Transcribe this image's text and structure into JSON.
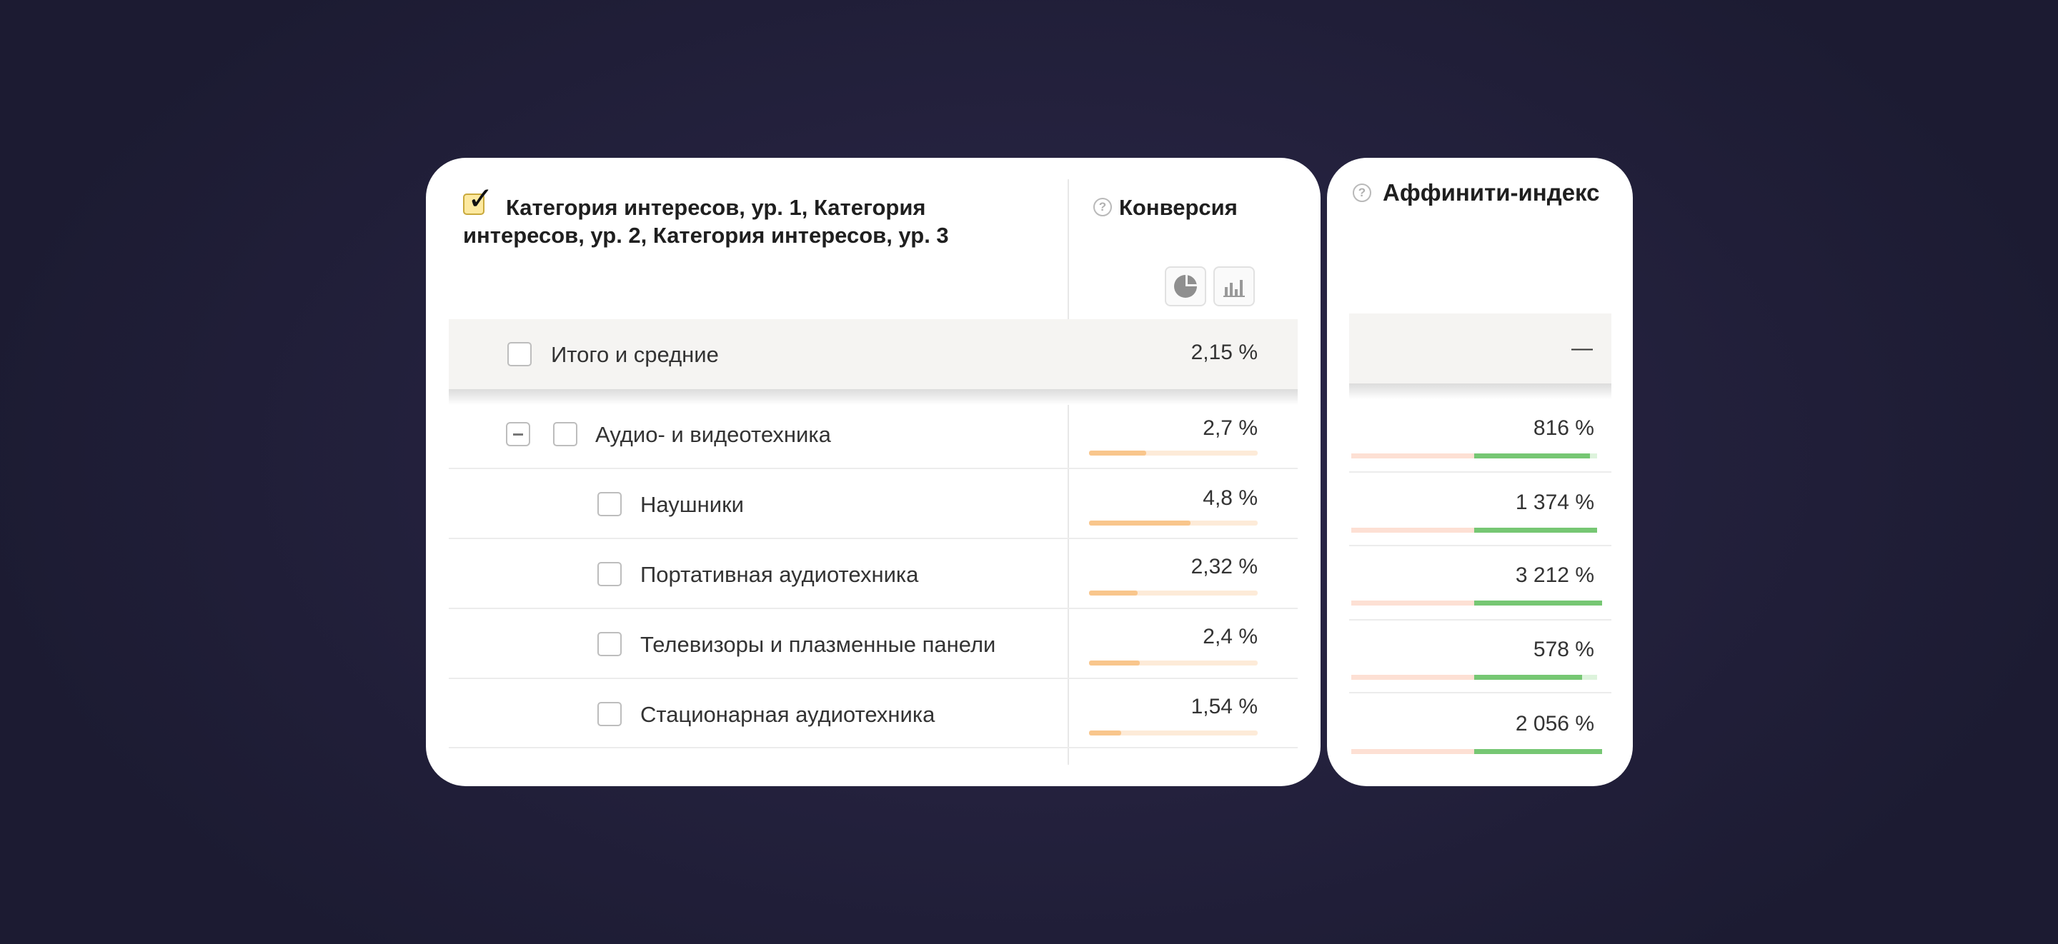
{
  "report": {
    "dimension_header": "Категория интересов, ур. 1, Категория интересов, ур. 2, Категория интересов, ур. 3",
    "metric_header": "Конверсия",
    "affinity_header": "Аффинити-индекс",
    "help_icon": "?",
    "view_buttons": [
      "pie-chart-icon",
      "bar-chart-icon"
    ],
    "total": {
      "label": "Итого и средние",
      "conversion": "2,15 %",
      "affinity": "—"
    },
    "rows": [
      {
        "label": "Аудио- и видеотехника",
        "level": 1,
        "conversion": "2,7 %",
        "conversion_fill": 0.34,
        "affinity": "816 %",
        "affinity_fill": 0.47
      },
      {
        "label": "Наушники",
        "level": 2,
        "conversion": "4,8 %",
        "conversion_fill": 0.6,
        "affinity": "1 374 %",
        "affinity_fill": 0.5
      },
      {
        "label": "Портативная аудиотехника",
        "level": 2,
        "conversion": "2,32 %",
        "conversion_fill": 0.29,
        "affinity": "3 212 %",
        "affinity_fill": 0.52
      },
      {
        "label": "Телевизоры и плазменные панели",
        "level": 2,
        "conversion": "2,4 %",
        "conversion_fill": 0.3,
        "affinity": "578 %",
        "affinity_fill": 0.44
      },
      {
        "label": "Стационарная аудиотехника",
        "level": 2,
        "conversion": "1,54 %",
        "conversion_fill": 0.19,
        "affinity": "2 056 %",
        "affinity_fill": 0.52
      }
    ],
    "colors": {
      "conversion_bar": "#f9c68c",
      "conversion_track": "#fdebd8",
      "affinity_positive": "#76c773",
      "affinity_negative_track": "#fde0d4"
    }
  }
}
